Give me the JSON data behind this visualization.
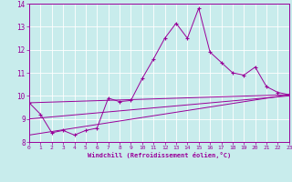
{
  "xlabel": "Windchill (Refroidissement éolien,°C)",
  "bg_color": "#c8ecec",
  "line_color": "#990099",
  "grid_color": "#ffffff",
  "xmin": 0,
  "xmax": 23,
  "ymin": 8,
  "ymax": 14,
  "series": [
    [
      0,
      9.7
    ],
    [
      1,
      9.2
    ],
    [
      2,
      8.4
    ],
    [
      3,
      8.5
    ],
    [
      4,
      8.3
    ],
    [
      5,
      8.5
    ],
    [
      6,
      8.6
    ],
    [
      7,
      9.9
    ],
    [
      8,
      9.75
    ],
    [
      9,
      9.8
    ],
    [
      10,
      10.75
    ],
    [
      11,
      11.6
    ],
    [
      12,
      12.5
    ],
    [
      13,
      13.15
    ],
    [
      14,
      12.5
    ],
    [
      15,
      13.8
    ],
    [
      16,
      11.9
    ],
    [
      17,
      11.45
    ],
    [
      18,
      11.0
    ],
    [
      19,
      10.9
    ],
    [
      20,
      11.25
    ],
    [
      21,
      10.4
    ],
    [
      22,
      10.15
    ],
    [
      23,
      10.05
    ]
  ],
  "linear1": [
    [
      0,
      9.7
    ],
    [
      23,
      10.05
    ]
  ],
  "linear2": [
    [
      0,
      9.0
    ],
    [
      23,
      10.0
    ]
  ],
  "linear3": [
    [
      0,
      8.3
    ],
    [
      23,
      10.05
    ]
  ]
}
